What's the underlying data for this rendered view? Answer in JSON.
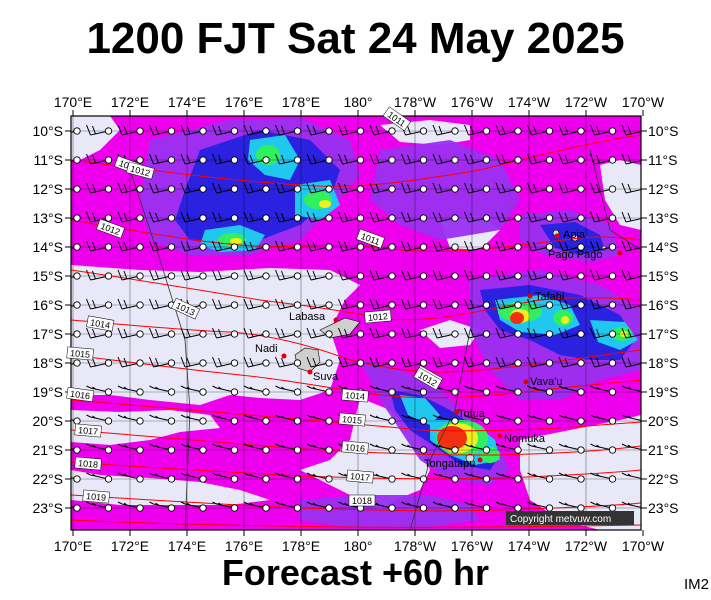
{
  "title": "1200 FJT Sat 24 May 2025",
  "footer": "Forecast +60 hr",
  "image_label": "IM2",
  "copyright": "Copyright metvuw.com",
  "longitude_labels": [
    "170°E",
    "172°E",
    "174°E",
    "176°E",
    "178°E",
    "180°",
    "178°W",
    "176°W",
    "174°W",
    "172°W",
    "170°W"
  ],
  "latitude_labels": [
    "10°S",
    "11°S",
    "12°S",
    "13°S",
    "14°S",
    "15°S",
    "16°S",
    "17°S",
    "18°S",
    "19°S",
    "20°S",
    "21°S",
    "22°S",
    "23°S"
  ],
  "places": [
    {
      "name": "Apia"
    },
    {
      "name": "Pago Pago"
    },
    {
      "name": "Tafahi"
    },
    {
      "name": "Labasa"
    },
    {
      "name": "Nadi"
    },
    {
      "name": "Suva"
    },
    {
      "name": "Vava'u"
    },
    {
      "name": "Tofua"
    },
    {
      "name": "Nomuka"
    },
    {
      "name": "Tongatapu"
    }
  ],
  "isobar_labels": [
    "1011",
    "1012",
    "1013",
    "1014",
    "1015",
    "1016",
    "1017",
    "1018",
    "1019",
    "1011",
    "1012",
    "1013",
    "1014",
    "1015",
    "1016",
    "1017",
    "1018",
    "1011",
    "1012",
    "1012"
  ],
  "colors": {
    "land_gray": "#e6e6f8",
    "rain_magenta": "#f000f0",
    "rain_purple": "#9a2cf0",
    "rain_blue": "#2020e0",
    "rain_cyan": "#20d0f0",
    "rain_green": "#30f060",
    "rain_yellow": "#f0f020",
    "rain_red": "#f03010",
    "isobar": "#ff0000"
  }
}
